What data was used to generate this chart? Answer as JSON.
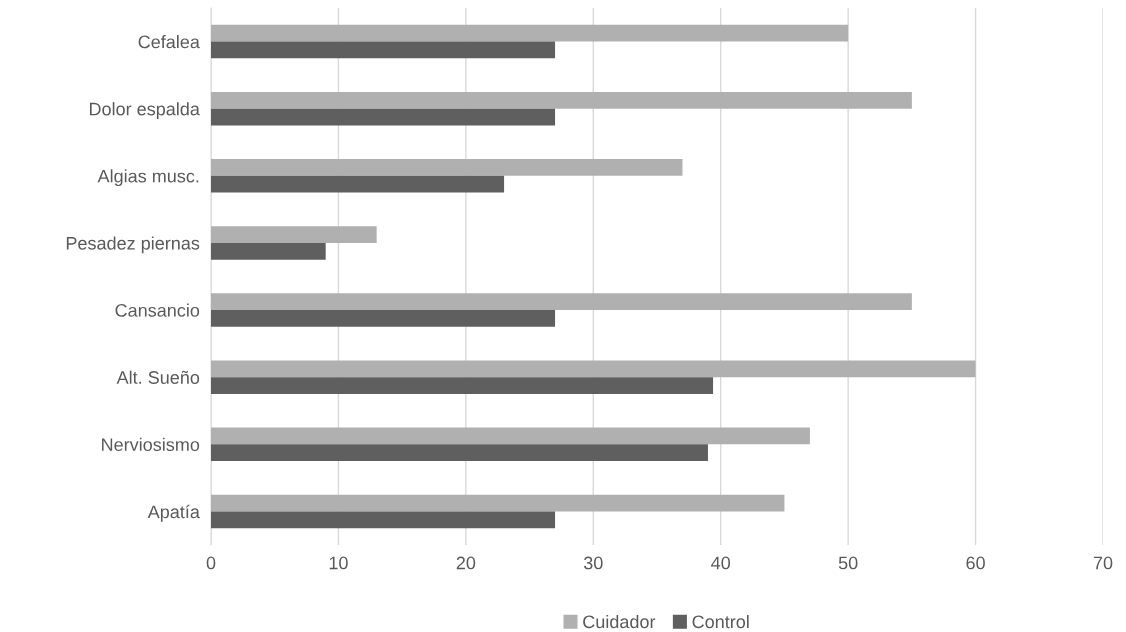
{
  "chart_data": {
    "type": "bar",
    "orientation": "horizontal",
    "categories": [
      "Cefalea",
      "Dolor espalda",
      "Algias musc.",
      "Pesadez piernas",
      "Cansancio",
      "Alt. Sueño",
      "Nerviosismo",
      "Apatía"
    ],
    "series": [
      {
        "name": "Cuidador",
        "color": "#b0b0b0",
        "values": [
          50,
          55,
          37,
          13,
          55,
          60,
          47,
          45
        ]
      },
      {
        "name": "Control",
        "color": "#5f5f5f",
        "values": [
          27,
          27,
          23,
          9,
          27,
          39.4,
          39,
          27
        ]
      }
    ],
    "xlim": [
      0,
      70
    ],
    "xticks": [
      0,
      10,
      20,
      30,
      40,
      50,
      60,
      70
    ],
    "grid": "x",
    "legend": "bottom"
  }
}
